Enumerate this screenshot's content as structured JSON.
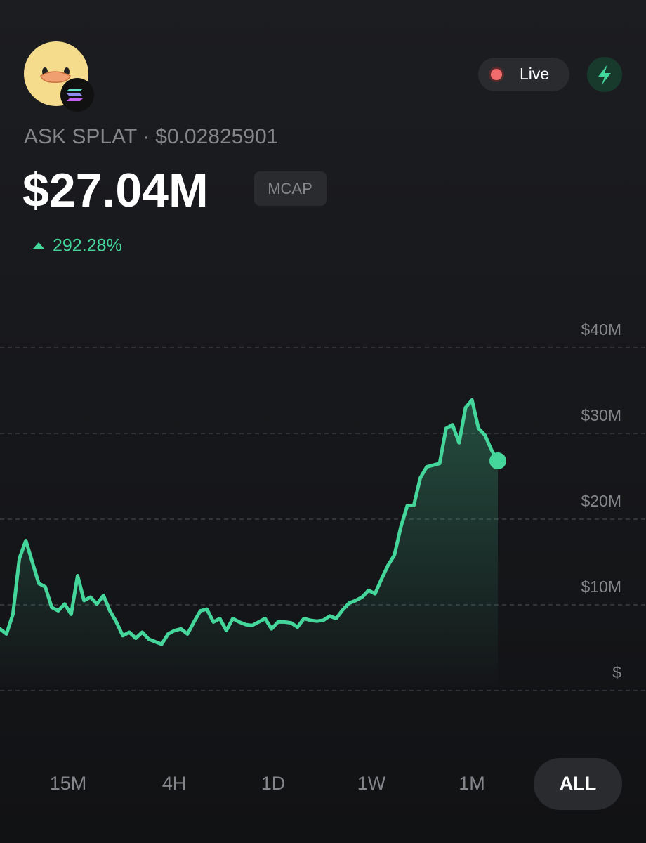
{
  "header": {
    "token_name": "ASK SPLAT",
    "separator": "·",
    "price": "$0.02825901",
    "market_cap": "$27.04M",
    "market_cap_badge": "MCAP",
    "change": "292.28%",
    "live_label": "Live"
  },
  "chart_data": {
    "type": "line",
    "series": [
      {
        "name": "Market cap",
        "color": "#45d69c",
        "values": [
          7.2,
          6.6,
          8.9,
          15.4,
          17.5,
          15,
          12.5,
          12.1,
          9.7,
          9.3,
          10.1,
          8.9,
          13.4,
          10.5,
          10.9,
          10.1,
          11.1,
          9.3,
          8,
          6.4,
          6.8,
          6.1,
          6.8,
          6,
          5.7,
          5.4,
          6.6,
          7,
          7.2,
          6.6,
          8,
          9.3,
          9.5,
          8,
          8.4,
          7,
          8.4,
          8,
          7.7,
          7.6,
          8,
          8.4,
          7.2,
          8,
          8,
          7.9,
          7.4,
          8.4,
          8.2,
          8.1,
          8.2,
          8.7,
          8.4,
          9.4,
          10.2,
          10.5,
          10.9,
          11.7,
          11.3,
          13,
          14.6,
          15.8,
          19.1,
          21.6,
          21.6,
          24.8,
          26.1,
          26.3,
          26.5,
          30.6,
          31,
          28.9,
          33,
          33.9,
          30.6,
          29.8,
          28.1,
          26.8
        ]
      }
    ],
    "ylim": [
      0,
      40
    ],
    "yticks": [
      {
        "value": 0,
        "label": "$"
      },
      {
        "value": 10,
        "label": "$10M"
      },
      {
        "value": 20,
        "label": "$20M"
      },
      {
        "value": 30,
        "label": "$30M"
      },
      {
        "value": 40,
        "label": "$40M"
      }
    ],
    "grid": true
  },
  "timeframes": {
    "options": [
      "15M",
      "4H",
      "1D",
      "1W",
      "1M",
      "ALL"
    ],
    "selected_index": 5
  }
}
